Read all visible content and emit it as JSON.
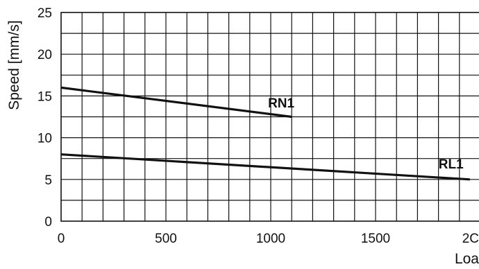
{
  "chart_data": {
    "type": "line",
    "ylabel": "Speed [mm/s]",
    "xlabel": "Loa",
    "xlim": [
      0,
      2000
    ],
    "ylim": [
      0,
      25
    ],
    "x_ticks": [
      "0",
      "500",
      "1000",
      "1500",
      "2C"
    ],
    "y_ticks": [
      "0",
      "5",
      "10",
      "15",
      "20",
      "25"
    ],
    "grid": true,
    "series": [
      {
        "name": "RN1",
        "x": [
          0,
          1100
        ],
        "y": [
          16,
          12.5
        ]
      },
      {
        "name": "RL1",
        "x": [
          0,
          1950
        ],
        "y": [
          8,
          5
        ]
      }
    ]
  }
}
